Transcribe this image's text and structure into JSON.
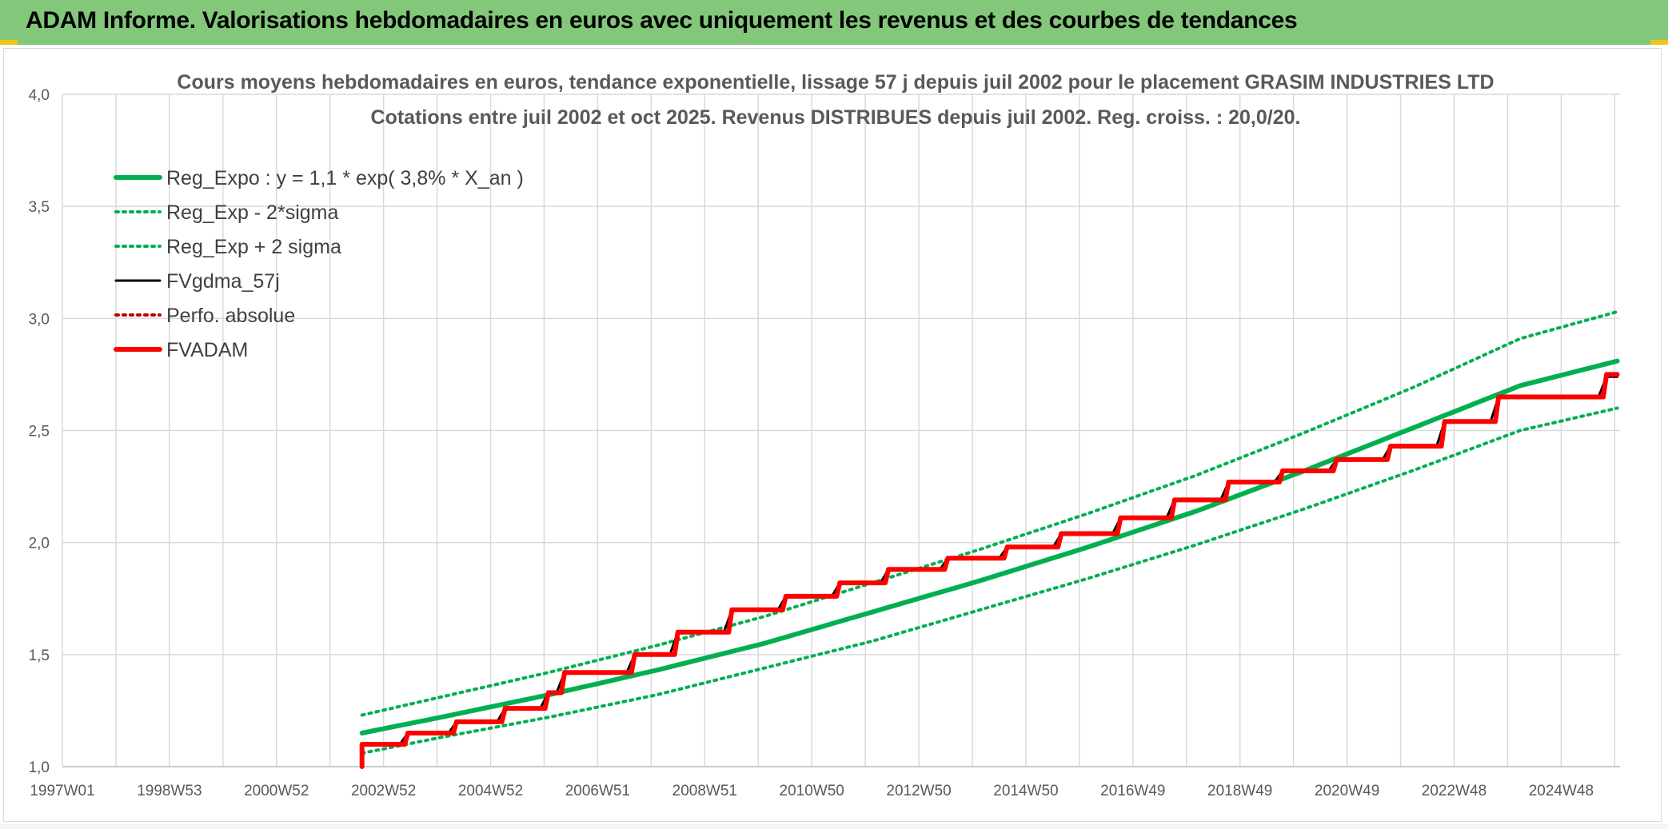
{
  "report_title": "ADAM Informe. Valorisations hebdomadaires en euros avec uniquement les revenus et des courbes de tendances",
  "colors": {
    "header_bar": "#82c77a",
    "regression": "#00b050",
    "fvgdma": "#000000",
    "fvadam": "#ff0000",
    "perfo": "#c00000",
    "grid": "#d9d9d9"
  },
  "chart_data": {
    "type": "line",
    "title": "Cours moyens hebdomadaires en euros, tendance exponentielle, lissage 57 j depuis juil 2002 pour le placement GRASIM INDUSTRIES LTD",
    "subtitle": "Cotations entre juil 2002 et oct 2025. Revenus DISTRIBUES depuis juil 2002. Reg. croiss. : 20,0/20.",
    "xlabel": "",
    "ylabel": "",
    "x_tick_labels": [
      "1997W01",
      "1998W53",
      "2000W52",
      "2002W52",
      "2004W52",
      "2006W51",
      "2008W51",
      "2010W50",
      "2012W50",
      "2014W50",
      "2016W49",
      "2018W49",
      "2020W49",
      "2022W48",
      "2024W48"
    ],
    "x_range": [
      1997.0,
      2025.85
    ],
    "y_tick_labels": [
      "1,0",
      "1,5",
      "2,0",
      "2,5",
      "3,0",
      "3,5",
      "4,0"
    ],
    "ylim": [
      1.0,
      4.0
    ],
    "grid": true,
    "legend_position": "top-left",
    "series": [
      {
        "name": "Reg_Expo : y = 1,1 * exp( 3,8% *  X_an )",
        "style": "solid-thick",
        "color": "#00b050",
        "x": [
          2002.55,
          2004,
          2006,
          2008,
          2010,
          2012,
          2014,
          2016,
          2018,
          2020,
          2022,
          2024,
          2025.8
        ],
        "y": [
          1.15,
          1.22,
          1.32,
          1.43,
          1.55,
          1.69,
          1.83,
          1.98,
          2.14,
          2.32,
          2.51,
          2.7,
          2.81
        ]
      },
      {
        "name": "Reg_Exp - 2*sigma",
        "style": "dotted",
        "color": "#00b050",
        "x": [
          2002.55,
          2004,
          2006,
          2008,
          2010,
          2012,
          2014,
          2016,
          2018,
          2020,
          2022,
          2024,
          2025.8
        ],
        "y": [
          1.06,
          1.13,
          1.22,
          1.32,
          1.44,
          1.56,
          1.7,
          1.84,
          1.99,
          2.15,
          2.32,
          2.5,
          2.6
        ]
      },
      {
        "name": "Reg_Exp + 2 sigma",
        "style": "dotted",
        "color": "#00b050",
        "x": [
          2002.55,
          2004,
          2006,
          2008,
          2010,
          2012,
          2014,
          2016,
          2018,
          2020,
          2022,
          2024,
          2025.8
        ],
        "y": [
          1.23,
          1.31,
          1.42,
          1.54,
          1.67,
          1.82,
          1.97,
          2.13,
          2.3,
          2.49,
          2.69,
          2.91,
          3.03
        ]
      },
      {
        "name": "FVgdma_57j",
        "style": "solid",
        "color": "#000000",
        "steps": "smoothed",
        "x": [
          2002.55,
          2003.4,
          2004.3,
          2005.2,
          2006.0,
          2006.3,
          2007.6,
          2008.4,
          2009.4,
          2010.4,
          2011.4,
          2012.3,
          2013.4,
          2014.5,
          2015.5,
          2016.6,
          2017.6,
          2018.6,
          2019.6,
          2020.6,
          2021.6,
          2022.6,
          2023.6,
          2024.6,
          2025.6
        ],
        "y": [
          1.1,
          1.15,
          1.2,
          1.26,
          1.33,
          1.42,
          1.5,
          1.6,
          1.7,
          1.76,
          1.82,
          1.88,
          1.93,
          1.98,
          2.04,
          2.11,
          2.19,
          2.27,
          2.32,
          2.37,
          2.43,
          2.54,
          2.65,
          2.65,
          2.74
        ]
      },
      {
        "name": "Perfo. absolue",
        "style": "dotted",
        "color": "#c00000",
        "x": [],
        "y": []
      },
      {
        "name": "FVADAM",
        "style": "step-thick",
        "color": "#ff0000",
        "x": [
          2002.55,
          2003.4,
          2004.3,
          2005.2,
          2006.0,
          2006.3,
          2007.6,
          2008.4,
          2009.4,
          2010.4,
          2011.4,
          2012.3,
          2013.4,
          2014.5,
          2015.5,
          2016.6,
          2017.6,
          2018.6,
          2019.6,
          2020.6,
          2021.6,
          2022.6,
          2023.6,
          2024.6,
          2025.6
        ],
        "y": [
          1.1,
          1.15,
          1.2,
          1.26,
          1.33,
          1.42,
          1.5,
          1.6,
          1.7,
          1.76,
          1.82,
          1.88,
          1.93,
          1.98,
          2.04,
          2.11,
          2.19,
          2.27,
          2.32,
          2.37,
          2.43,
          2.54,
          2.65,
          2.65,
          2.75
        ]
      }
    ]
  }
}
